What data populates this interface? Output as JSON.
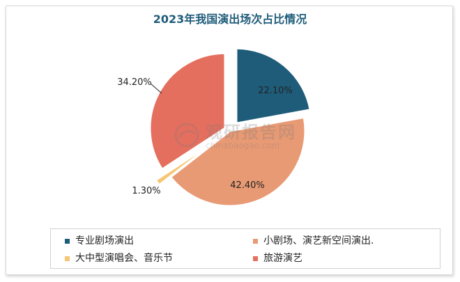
{
  "chart_data": {
    "type": "pie",
    "title": "2023年我国演出场次占比情况",
    "series": [
      {
        "name": "专业剧场演出",
        "value": 22.1,
        "label": "22.10%",
        "color": "#1f5c7a"
      },
      {
        "name": "小剧场、演艺新空间演出.",
        "value": 42.4,
        "label": "42.40%",
        "color": "#e89a74"
      },
      {
        "name": "大中型演唱会、音乐节",
        "value": 1.3,
        "label": "1.30%",
        "color": "#f7c574"
      },
      {
        "name": "旅游演艺",
        "value": 34.2,
        "label": "34.20%",
        "color": "#e56f5f"
      }
    ],
    "legend_position": "bottom"
  },
  "watermark": {
    "text": "观研报告网",
    "sub": "chinabaogao.com"
  }
}
